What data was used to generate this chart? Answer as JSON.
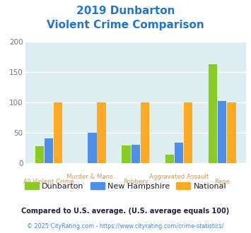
{
  "title_line1": "2019 Dunbarton",
  "title_line2": "Violent Crime Comparison",
  "categories": [
    "All Violent Crime",
    "Murder & Mans...",
    "Robbery",
    "Aggravated Assault",
    "Rape"
  ],
  "cat_labels_upper": [
    "",
    "Murder & Mans...",
    "",
    "Aggravated Assault",
    ""
  ],
  "cat_labels_lower": [
    "All Violent Crime",
    "",
    "Robbery",
    "",
    "Rape"
  ],
  "dunbarton": [
    28,
    0,
    29,
    14,
    163
  ],
  "new_hampshire": [
    41,
    50,
    30,
    34,
    102
  ],
  "national": [
    100,
    100,
    100,
    100,
    100
  ],
  "colors": {
    "dunbarton": "#88cc22",
    "new_hampshire": "#4d8fea",
    "national": "#ffaa22"
  },
  "ylim": [
    0,
    200
  ],
  "yticks": [
    0,
    50,
    100,
    150,
    200
  ],
  "bg_color": "#ddeef0",
  "title_color": "#2277cc",
  "cat_label_color": "#cc9966",
  "legend_text_color": "#222222",
  "footnote1": "Compared to U.S. average. (U.S. average equals 100)",
  "footnote2": "© 2025 CityRating.com - https://www.cityrating.com/crime-statistics/",
  "footnote1_color": "#222244",
  "footnote2_color": "#4488cc"
}
